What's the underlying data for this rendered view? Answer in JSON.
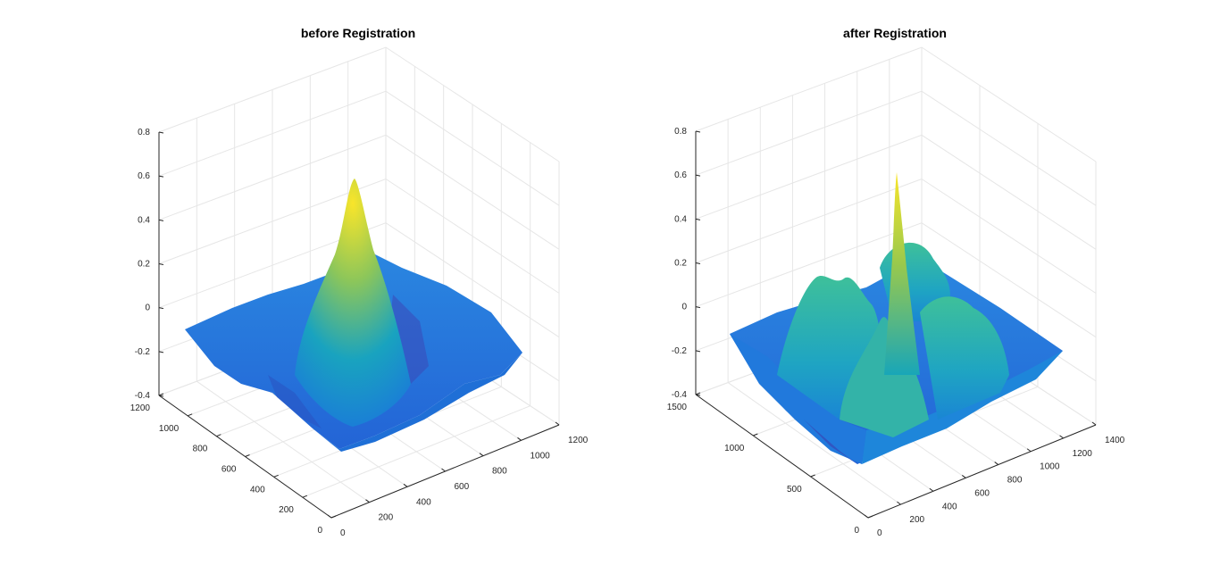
{
  "chart_data": [
    {
      "type": "surface",
      "title": "before Registration",
      "zlim": [
        -0.4,
        0.8
      ],
      "zticks": [
        "-0.4",
        "-0.2",
        "0",
        "0.2",
        "0.4",
        "0.6",
        "0.8"
      ],
      "xlim": [
        0,
        1200
      ],
      "xticks": [
        "0",
        "200",
        "400",
        "600",
        "800",
        "1000",
        "1200"
      ],
      "ylim": [
        0,
        1200
      ],
      "yticks": [
        "0",
        "200",
        "400",
        "600",
        "800",
        "1000",
        "1200"
      ],
      "peak_z": 0.6,
      "baseline_z": -0.1,
      "min_z": -0.38,
      "grid": true,
      "colormap": "parula"
    },
    {
      "type": "surface",
      "title": "after Registration",
      "zlim": [
        -0.4,
        0.8
      ],
      "zticks": [
        "-0.4",
        "-0.2",
        "0",
        "0.2",
        "0.4",
        "0.6",
        "0.8"
      ],
      "xlim": [
        0,
        1400
      ],
      "xticks": [
        "0",
        "200",
        "400",
        "600",
        "800",
        "1000",
        "1200",
        "1400"
      ],
      "ylim": [
        0,
        1500
      ],
      "yticks": [
        "0",
        "500",
        "1000",
        "1500"
      ],
      "peak_z": 0.6,
      "baseline_z": -0.1,
      "min_z": -0.4,
      "grid": true,
      "colormap": "parula"
    }
  ]
}
